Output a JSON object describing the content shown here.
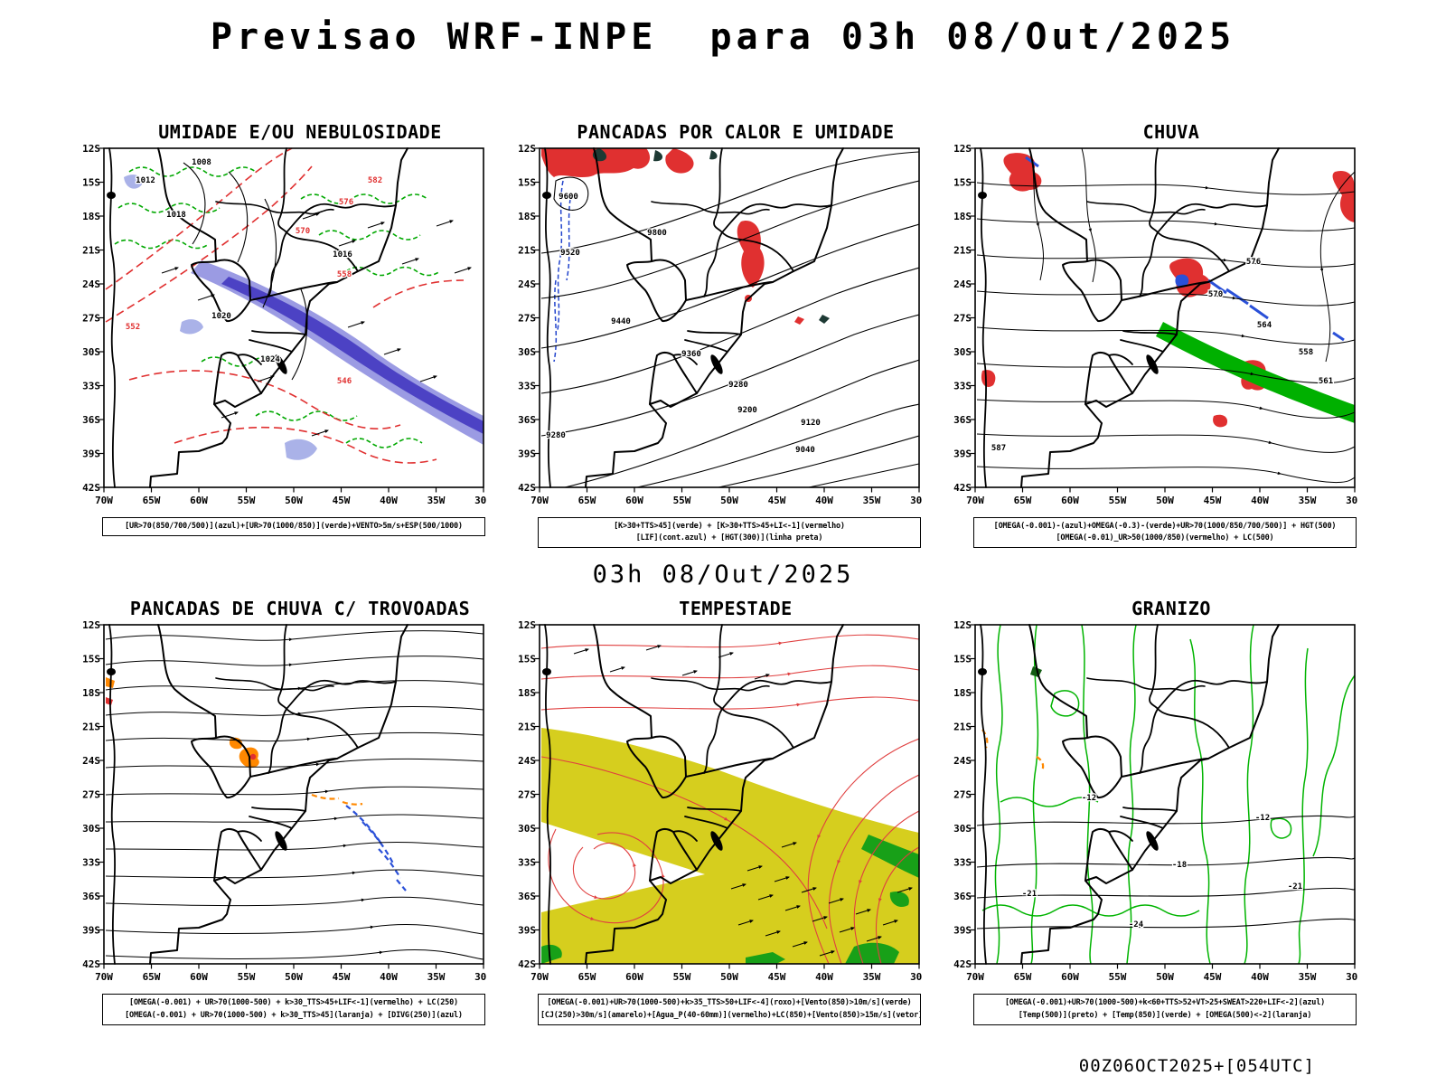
{
  "page": {
    "title": "Previsao WRF-INPE  para 03h 08/Out/2025",
    "run_label": "03h 08/Out/2025",
    "footer": "00Z06OCT2025+[054UTC]"
  },
  "axes": {
    "lat": [
      "12S",
      "15S",
      "18S",
      "21S",
      "24S",
      "27S",
      "30S",
      "33S",
      "36S",
      "39S",
      "42S"
    ],
    "lon": [
      "70W",
      "65W",
      "60W",
      "55W",
      "50W",
      "45W",
      "40W",
      "35W",
      "30W"
    ]
  },
  "colors": {
    "green": "#00a800",
    "red": "#e03030",
    "blue": "#2a50d8",
    "purple_band": "#4438c0",
    "light_band": "#8a8ade",
    "yellow": "#d6ce1e",
    "orange": "#ff8800",
    "dark_patch": "#1e3a34"
  },
  "panels": [
    {
      "id": "umidade",
      "title": "UMIDADE E/OU NEBULOSIDADE",
      "caption_lines": [
        "[UR>70(850/700/500)](azul)+[UR>70(1000/850)](verde)+VENTO>5m/s+ESP(500/1000)"
      ],
      "labels": [
        "1008",
        "1012",
        "1018",
        "1016",
        "1020",
        "1024",
        "570",
        "576",
        "582",
        "558",
        "546",
        "552"
      ]
    },
    {
      "id": "pancadas-calor",
      "title": "PANCADAS POR CALOR E UMIDADE",
      "caption_lines": [
        "[K>30+TTS>45](verde) + [K>30+TTS>45+LI<-1](vermelho)",
        "[LIF](cont.azul) + [HGT(300)](linha preta)"
      ],
      "labels": [
        "9800",
        "9600",
        "9520",
        "9440",
        "9360",
        "9280",
        "9200",
        "9120",
        "9040",
        "9280"
      ]
    },
    {
      "id": "chuva",
      "title": "CHUVA",
      "caption_lines": [
        "[OMEGA(-0.001)-(azul)+OMEGA(-0.3)-(verde)+UR>70(1000/850/700/500)] + HGT(500)",
        "[OMEGA(-0.01)_UR>50(1000/850)(vermelho) + LC(500)"
      ],
      "labels": [
        "576",
        "570",
        "564",
        "558",
        "561",
        "587"
      ]
    },
    {
      "id": "trovoadas",
      "title": "PANCADAS DE CHUVA C/ TROVOADAS",
      "caption_lines": [
        "[OMEGA(-0.001) + UR>70(1000-500) + k>30_TTS>45+LIF<-1](vermelho) + LC(250)",
        "[OMEGA(-0.001) + UR>70(1000-500) + k>30_TTS>45](laranja) + [DIVG(250)](azul)"
      ],
      "labels": []
    },
    {
      "id": "tempestade",
      "title": "TEMPESTADE",
      "caption_lines": [
        "[OMEGA(-0.001)+UR>70(1000-500)+k>35_TTS>50+LIF<-4](roxo)+[Vento(850)>10m/s](verde)",
        "[CJ(250)>30m/s](amarelo)+[Agua_P(40-60mm)](vermelho)+LC(850)+[Vento(850)>15m/s](vetor)"
      ],
      "labels": []
    },
    {
      "id": "granizo",
      "title": "GRANIZO",
      "caption_lines": [
        "[OMEGA(-0.001)+UR>70(1000-500)+k<60+TTS>52+VT>25+SWEAT>220+LIF<-2](azul)",
        "[Temp(500)](preto) + [Temp(850)](verde) + [OMEGA(500)<-2](laranja)"
      ],
      "labels": [
        "-12",
        "-12",
        "-18",
        "-21",
        "-24",
        "-21"
      ]
    }
  ]
}
